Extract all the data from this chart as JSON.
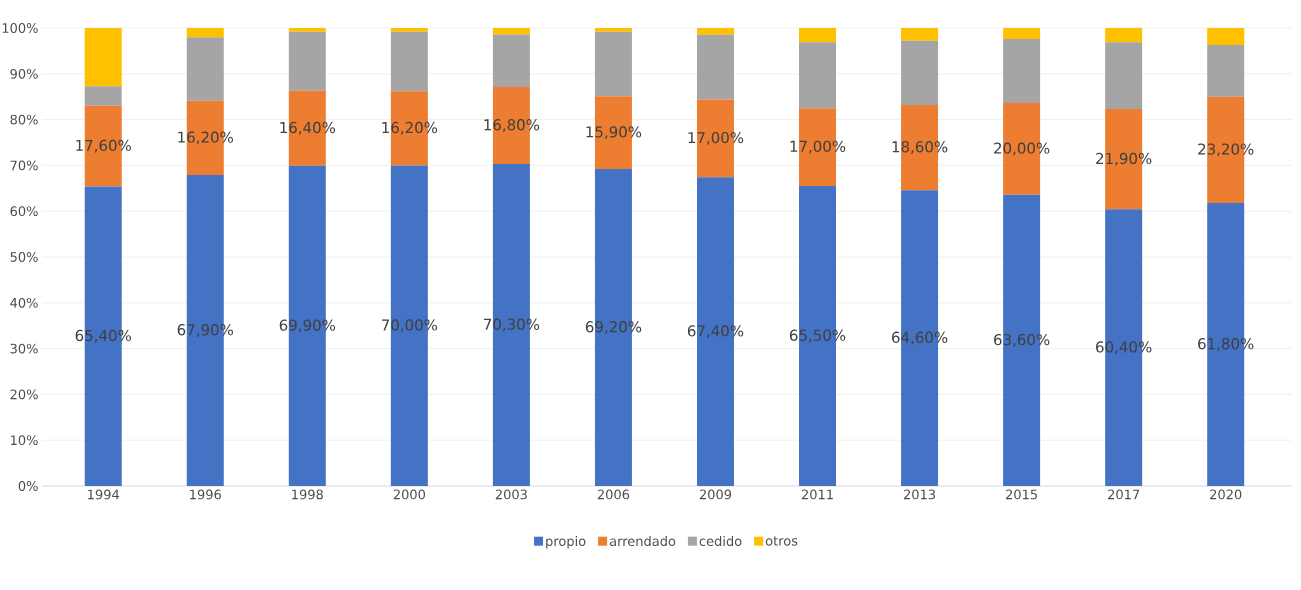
{
  "chart_data": {
    "type": "bar",
    "stacked": true,
    "categories": [
      "1994",
      "1996",
      "1998",
      "2000",
      "2003",
      "2006",
      "2009",
      "2011",
      "2013",
      "2015",
      "2017",
      "2020"
    ],
    "series": [
      {
        "name": "propio",
        "color": "#4472c4",
        "values": [
          65.4,
          67.9,
          69.9,
          70.0,
          70.3,
          69.2,
          67.4,
          65.5,
          64.6,
          63.6,
          60.4,
          61.8
        ],
        "value_labels": [
          "65,40%",
          "67,90%",
          "69,90%",
          "70,00%",
          "70,30%",
          "69,20%",
          "67,40%",
          "65,50%",
          "64,60%",
          "63,60%",
          "60,40%",
          "61,80%"
        ]
      },
      {
        "name": "arrendado",
        "color": "#ed7d31",
        "values": [
          17.6,
          16.2,
          16.4,
          16.2,
          16.8,
          15.9,
          17.0,
          17.0,
          18.6,
          20.0,
          21.9,
          23.2
        ],
        "value_labels": [
          "17,60%",
          "16,20%",
          "16,40%",
          "16,20%",
          "16,80%",
          "15,90%",
          "17,00%",
          "17,00%",
          "18,60%",
          "20,00%",
          "21,90%",
          "23,20%"
        ]
      },
      {
        "name": "cedido",
        "color": "#a5a5a5",
        "values": [
          4.3,
          13.9,
          12.9,
          13.0,
          11.5,
          14.1,
          14.1,
          14.4,
          14.0,
          14.0,
          14.6,
          11.3
        ]
      },
      {
        "name": "otros",
        "color": "#ffc000",
        "values": [
          12.7,
          2.0,
          0.8,
          0.8,
          1.4,
          0.8,
          1.5,
          3.1,
          2.8,
          2.4,
          3.1,
          3.7
        ]
      }
    ],
    "ylim": [
      0,
      100
    ],
    "yticks": [
      {
        "value": 0,
        "label": "0%"
      },
      {
        "value": 10,
        "label": "10%"
      },
      {
        "value": 20,
        "label": "20%"
      },
      {
        "value": 30,
        "label": "30%"
      },
      {
        "value": 40,
        "label": "40%"
      },
      {
        "value": 50,
        "label": "50%"
      },
      {
        "value": 60,
        "label": "60%"
      },
      {
        "value": 70,
        "label": "70%"
      },
      {
        "value": 80,
        "label": "80%"
      },
      {
        "value": 90,
        "label": "90%"
      },
      {
        "value": 100,
        "label": "100%"
      }
    ],
    "grid": "y",
    "legend": "bottom"
  }
}
